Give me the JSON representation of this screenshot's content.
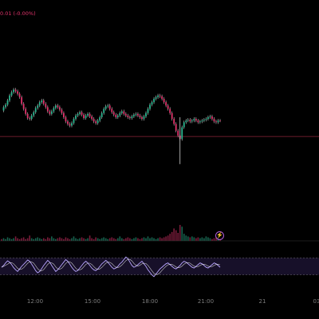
{
  "header": {
    "change_text": "0.01 (-0.00%)"
  },
  "colors": {
    "background": "#000000",
    "up_candle": "#2bb58f",
    "down_candle": "#e0336b",
    "wick": "#cfcfcf",
    "reference_line": "#8c2537",
    "rsi_line": "#b9a6ff",
    "rsi_secondary": "#f3f3f3",
    "rsi_band": "#2a1e4a",
    "axis_text": "#7d7d7d",
    "event_marker": "#b05cd6"
  },
  "time_axis": {
    "labels": [
      "12:00",
      "15:00",
      "18:00",
      "21:00",
      "21",
      "03"
    ]
  },
  "event_marker": {
    "icon": "lightning-icon",
    "glyph": "⚡"
  },
  "chart_data": {
    "type": "candlestick",
    "title": "",
    "xlabel": "",
    "ylabel": "",
    "grid": false,
    "legend": "none",
    "price_path": [
      32,
      28,
      25,
      20,
      14,
      10,
      7,
      9,
      12,
      16,
      24,
      30,
      36,
      41,
      42,
      38,
      34,
      29,
      26,
      22,
      20,
      24,
      28,
      33,
      36,
      33,
      29,
      26,
      28,
      31,
      35,
      40,
      45,
      48,
      50,
      47,
      42,
      38,
      36,
      34,
      37,
      41,
      38,
      36,
      39,
      42,
      45,
      47,
      44,
      40,
      35,
      30,
      27,
      26,
      30,
      34,
      37,
      40,
      38,
      35,
      33,
      36,
      38,
      40,
      41,
      39,
      37,
      36,
      38,
      40,
      42,
      39,
      35,
      30,
      25,
      22,
      18,
      16,
      14,
      15,
      18,
      22,
      26,
      30,
      35,
      42,
      48,
      56,
      62,
      66,
      52,
      46,
      44,
      43,
      45,
      44,
      42,
      44,
      46,
      45,
      44,
      43,
      42,
      40,
      39,
      42,
      45,
      46,
      44,
      44
    ],
    "reference_line_level": 52,
    "volume": [
      2,
      3,
      2,
      4,
      3,
      2,
      3,
      5,
      3,
      2,
      3,
      4,
      2,
      3,
      6,
      3,
      2,
      3,
      4,
      3,
      2,
      3,
      2,
      4,
      3,
      5,
      3,
      2,
      3,
      4,
      3,
      2,
      4,
      3,
      2,
      3,
      5,
      3,
      2,
      3,
      4,
      3,
      2,
      3,
      6,
      3,
      2,
      4,
      3,
      2,
      3,
      4,
      3,
      2,
      3,
      4,
      3,
      2,
      3,
      5,
      3,
      2,
      3,
      4,
      3,
      2,
      3,
      4,
      3,
      2,
      3,
      4,
      3,
      5,
      3,
      4,
      3,
      2,
      3,
      4,
      3,
      4,
      5,
      6,
      8,
      10,
      14,
      12,
      9,
      18,
      16,
      8,
      6,
      5,
      4,
      5,
      4,
      3,
      4,
      3,
      4,
      3,
      5,
      4,
      3,
      2,
      3,
      4,
      3,
      2
    ],
    "rsi": {
      "band_upper": 70,
      "band_lower": 30,
      "ylim": [
        20,
        80
      ],
      "values": [
        48,
        52,
        58,
        63,
        60,
        54,
        47,
        42,
        38,
        44,
        50,
        55,
        60,
        65,
        62,
        55,
        48,
        40,
        35,
        38,
        45,
        52,
        58,
        64,
        60,
        52,
        45,
        38,
        42,
        48,
        54,
        60,
        66,
        62,
        55,
        48,
        42,
        38,
        40,
        46,
        52,
        58,
        62,
        58,
        52,
        46,
        42,
        40,
        44,
        50,
        56,
        60,
        64,
        60,
        54,
        48,
        44,
        46,
        50,
        56,
        60,
        66,
        72,
        68,
        60,
        52,
        48,
        50,
        54,
        58,
        62,
        56,
        50,
        42,
        36,
        30,
        26,
        32,
        38,
        44,
        48,
        52,
        56,
        58,
        54,
        50,
        46,
        44,
        48,
        52,
        58,
        62,
        60,
        56,
        52,
        48,
        46,
        50,
        54,
        58,
        56,
        52,
        48,
        46,
        50,
        54,
        58,
        56,
        52,
        48
      ]
    }
  }
}
